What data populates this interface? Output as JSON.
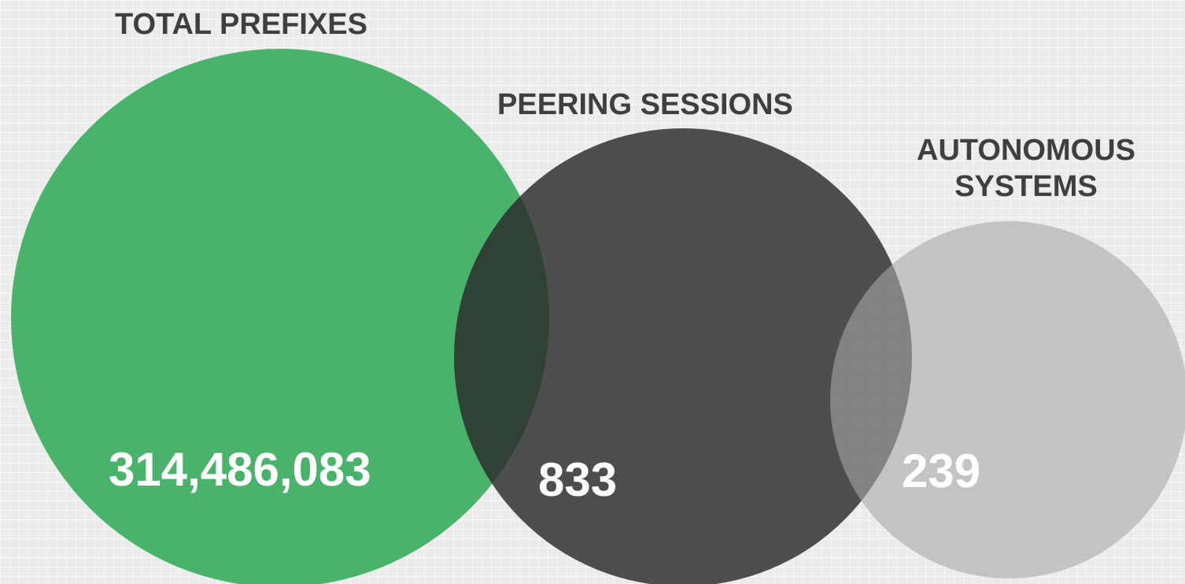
{
  "sets": [
    {
      "id": "prefixes",
      "heading": [
        "TOTAL PREFIXES"
      ],
      "value": "314,486,083",
      "color": "#4ab36b",
      "opacity": 1
    },
    {
      "id": "sessions",
      "heading": [
        "PEERING SESSIONS"
      ],
      "value": "833",
      "color": "#2a2a2a",
      "opacity": 0.82
    },
    {
      "id": "as",
      "heading": [
        "AUTONOMOUS",
        "SYSTEMS"
      ],
      "value": "239",
      "color": "#a9a9a9",
      "opacity": 0.6
    }
  ],
  "colors": {
    "background": "#ebebeb",
    "heading_text": "#3f3f3f",
    "value_text": "#ffffff"
  }
}
